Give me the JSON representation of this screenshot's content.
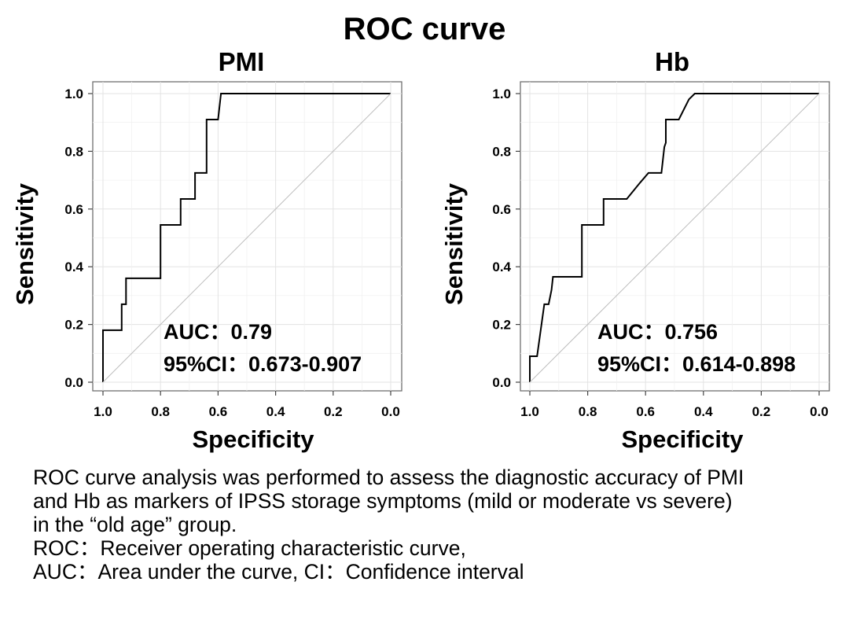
{
  "figure": {
    "title": "ROC curve"
  },
  "chart_data": [
    {
      "type": "line",
      "title": "PMI",
      "xlabel": "Specificity",
      "ylabel": "Sensitivity",
      "xlim": [
        1.0,
        0.0
      ],
      "ylim": [
        0.0,
        1.0
      ],
      "x_reversed": true,
      "xticks": [
        "1.0",
        "0.8",
        "0.6",
        "0.4",
        "0.2",
        "0.0"
      ],
      "yticks": [
        "0.0",
        "0.2",
        "0.4",
        "0.6",
        "0.8",
        "1.0"
      ],
      "grid": true,
      "annotations": [
        "AUC：0.79",
        "95%CI：0.673-0.907"
      ],
      "series": [
        {
          "specificity": [
            1.0,
            1.0,
            0.935,
            0.935,
            0.92,
            0.92,
            0.8,
            0.8,
            0.73,
            0.73,
            0.68,
            0.68,
            0.64,
            0.64,
            0.6,
            0.59,
            0.0
          ],
          "sensitivity": [
            0.0,
            0.18,
            0.18,
            0.27,
            0.27,
            0.36,
            0.36,
            0.545,
            0.545,
            0.635,
            0.635,
            0.725,
            0.725,
            0.91,
            0.91,
            1.0,
            1.0
          ]
        },
        {
          "specificity": [
            1.0,
            0.0
          ],
          "sensitivity": [
            0.0,
            1.0
          ],
          "style": "reference"
        }
      ]
    },
    {
      "type": "line",
      "title": "Hb",
      "xlabel": "Specificity",
      "ylabel": "Sensitivity",
      "xlim": [
        1.0,
        0.0
      ],
      "ylim": [
        0.0,
        1.0
      ],
      "x_reversed": true,
      "xticks": [
        "1.0",
        "0.8",
        "0.6",
        "0.4",
        "0.2",
        "0.0"
      ],
      "yticks": [
        "0.0",
        "0.2",
        "0.4",
        "0.6",
        "0.8",
        "1.0"
      ],
      "grid": true,
      "annotations": [
        "AUC：0.756",
        "95%CI：0.614-0.898"
      ],
      "series": [
        {
          "specificity": [
            1.0,
            1.0,
            0.975,
            0.95,
            0.935,
            0.925,
            0.92,
            0.82,
            0.82,
            0.745,
            0.745,
            0.665,
            0.62,
            0.59,
            0.545,
            0.535,
            0.53,
            0.53,
            0.485,
            0.45,
            0.43,
            0.0
          ],
          "sensitivity": [
            0.0,
            0.09,
            0.09,
            0.27,
            0.27,
            0.32,
            0.365,
            0.365,
            0.545,
            0.545,
            0.635,
            0.635,
            0.69,
            0.725,
            0.725,
            0.815,
            0.83,
            0.91,
            0.91,
            0.98,
            1.0,
            1.0
          ]
        },
        {
          "specificity": [
            1.0,
            0.0
          ],
          "sensitivity": [
            0.0,
            1.0
          ],
          "style": "reference"
        }
      ]
    }
  ],
  "caption": {
    "lines": [
      "ROC curve analysis was performed to assess the diagnostic accuracy of PMI",
      "and Hb as markers of IPSS storage symptoms (mild or moderate vs severe)",
      "in the “old age” group.",
      "ROC：Receiver operating characteristic curve,",
      "AUC：Area under the curve, CI：Confidence interval"
    ]
  }
}
